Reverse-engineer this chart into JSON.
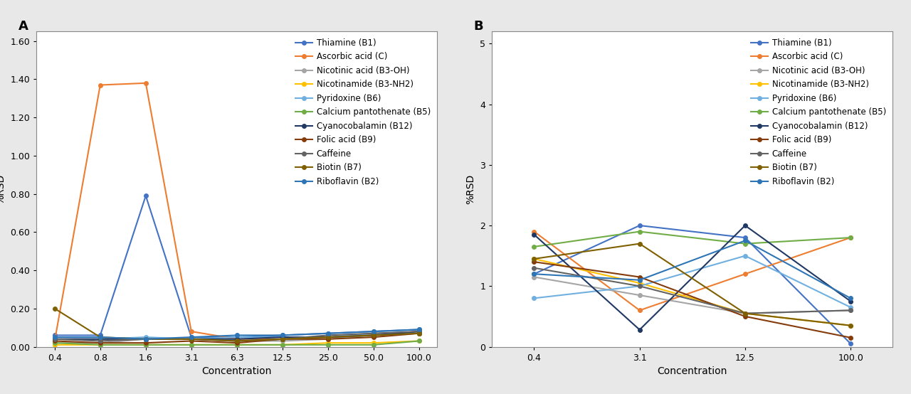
{
  "panel_A": {
    "x_labels": [
      "0.4",
      "0.8",
      "1.6",
      "3.1",
      "6.3",
      "12.5",
      "25.0",
      "50.0",
      "100.0"
    ],
    "x_positions": [
      0,
      1,
      2,
      3,
      4,
      5,
      6,
      7,
      8
    ],
    "ylim": [
      0,
      1.65
    ],
    "yticks": [
      0.0,
      0.2,
      0.4,
      0.6,
      0.8,
      1.0,
      1.2,
      1.4,
      1.6
    ],
    "series": [
      {
        "label": "Thiamine (B1)",
        "color": "#4472c4",
        "data": [
          0.06,
          0.06,
          0.79,
          0.05,
          0.05,
          0.06,
          0.07,
          0.08,
          0.09
        ]
      },
      {
        "label": "Ascorbic acid (C)",
        "color": "#ed7d31",
        "data": [
          0.03,
          1.37,
          1.38,
          0.08,
          0.04,
          0.04,
          0.05,
          0.06,
          0.08
        ]
      },
      {
        "label": "Nicotinic acid (B3-OH)",
        "color": "#a5a5a5",
        "data": [
          0.02,
          0.02,
          0.04,
          0.04,
          0.03,
          0.03,
          0.04,
          0.06,
          0.07
        ]
      },
      {
        "label": "Nicotinamide (B3-NH2)",
        "color": "#ffc000",
        "data": [
          0.01,
          0.01,
          0.01,
          0.01,
          0.01,
          0.01,
          0.02,
          0.02,
          0.03
        ]
      },
      {
        "label": "Pyridoxine (B6)",
        "color": "#70b0e0",
        "data": [
          0.04,
          0.04,
          0.05,
          0.04,
          0.05,
          0.05,
          0.05,
          0.07,
          0.07
        ]
      },
      {
        "label": "Calcium pantothenate (B5)",
        "color": "#70ad47",
        "data": [
          0.02,
          0.01,
          0.01,
          0.01,
          0.01,
          0.01,
          0.01,
          0.01,
          0.03
        ]
      },
      {
        "label": "Cyanocobalamin (B12)",
        "color": "#203864",
        "data": [
          0.04,
          0.04,
          0.04,
          0.04,
          0.04,
          0.05,
          0.05,
          0.06,
          0.08
        ]
      },
      {
        "label": "Folic acid (B9)",
        "color": "#843c0c",
        "data": [
          0.03,
          0.02,
          0.02,
          0.03,
          0.02,
          0.04,
          0.04,
          0.05,
          0.07
        ]
      },
      {
        "label": "Caffeine",
        "color": "#636363",
        "data": [
          0.04,
          0.03,
          0.04,
          0.04,
          0.03,
          0.04,
          0.06,
          0.07,
          0.08
        ]
      },
      {
        "label": "Biotin (B7)",
        "color": "#7f6000",
        "data": [
          0.2,
          0.05,
          0.04,
          0.04,
          0.03,
          0.04,
          0.05,
          0.06,
          0.07
        ]
      },
      {
        "label": "Riboflavin (B2)",
        "color": "#2e75b6",
        "data": [
          0.05,
          0.05,
          0.04,
          0.05,
          0.06,
          0.06,
          0.07,
          0.08,
          0.09
        ]
      }
    ]
  },
  "panel_B": {
    "x_labels": [
      "0.4",
      "3.1",
      "12.5",
      "100.0"
    ],
    "x_positions": [
      0,
      1,
      2,
      3
    ],
    "ylim": [
      0,
      5.2
    ],
    "yticks": [
      0,
      1,
      2,
      3,
      4,
      5
    ],
    "series": [
      {
        "label": "Thiamine (B1)",
        "color": "#4472c4",
        "data": [
          1.2,
          2.0,
          1.8,
          0.05
        ]
      },
      {
        "label": "Ascorbic acid (C)",
        "color": "#ed7d31",
        "data": [
          1.9,
          0.6,
          1.2,
          1.8
        ]
      },
      {
        "label": "Nicotinic acid (B3-OH)",
        "color": "#a5a5a5",
        "data": [
          1.15,
          0.85,
          0.55,
          0.6
        ]
      },
      {
        "label": "Nicotinamide (B3-NH2)",
        "color": "#ffc000",
        "data": [
          1.45,
          1.05,
          0.55,
          0.35
        ]
      },
      {
        "label": "Pyridoxine (B6)",
        "color": "#70b0e0",
        "data": [
          0.8,
          1.0,
          1.5,
          0.65
        ]
      },
      {
        "label": "Calcium pantothenate (B5)",
        "color": "#70ad47",
        "data": [
          1.65,
          1.9,
          1.7,
          1.8
        ]
      },
      {
        "label": "Cyanocobalamin (B12)",
        "color": "#203864",
        "data": [
          1.85,
          0.28,
          2.0,
          0.75
        ]
      },
      {
        "label": "Folic acid (B9)",
        "color": "#843c0c",
        "data": [
          1.4,
          1.15,
          0.5,
          0.15
        ]
      },
      {
        "label": "Caffeine",
        "color": "#636363",
        "data": [
          1.3,
          1.0,
          0.55,
          0.6
        ]
      },
      {
        "label": "Biotin (B7)",
        "color": "#7f6000",
        "data": [
          1.45,
          1.7,
          0.55,
          0.35
        ]
      },
      {
        "label": "Riboflavin (B2)",
        "color": "#2e75b6",
        "data": [
          1.2,
          1.1,
          1.75,
          0.8
        ]
      }
    ]
  },
  "ylabel": "%RSD",
  "xlabel": "Concentration",
  "marker": "o",
  "markersize": 4,
  "linewidth": 1.5,
  "legend_fontsize": 8.5,
  "axis_fontsize": 9,
  "label_fontsize": 10,
  "panel_label_fontsize": 13,
  "background_color": "#f0f0f0"
}
